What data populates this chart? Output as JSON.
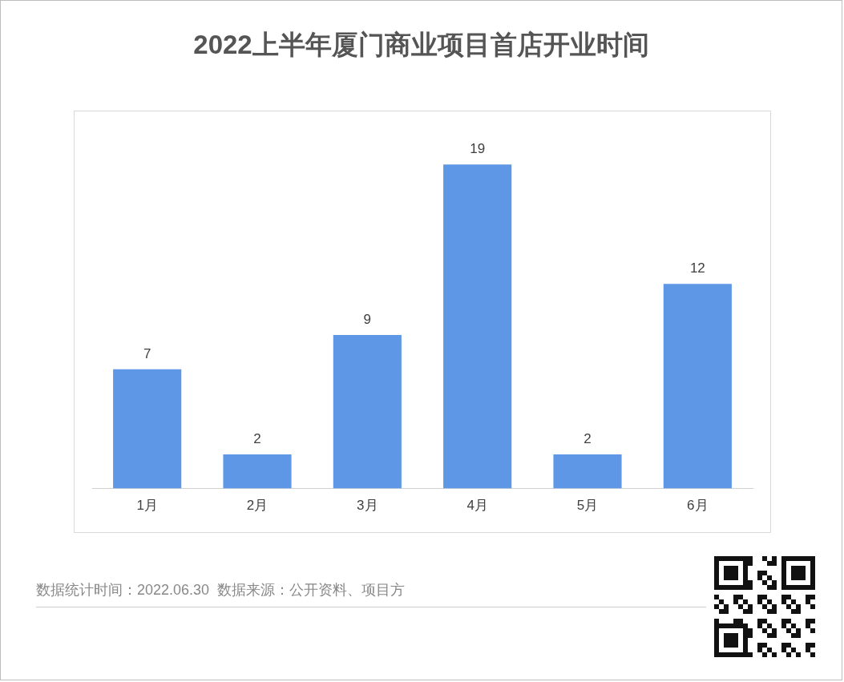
{
  "chart_data": {
    "type": "bar",
    "title": "2022上半年厦门商业项目首店开业时间",
    "categories": [
      "1月",
      "2月",
      "3月",
      "4月",
      "5月",
      "6月"
    ],
    "values": [
      7,
      2,
      9,
      19,
      2,
      12
    ],
    "color": "#5e97e6",
    "data_labels": true,
    "legend": false,
    "annotations": [
      "数据统计时间：2022.06.30  数据来源：公开资料、项目方"
    ]
  }
}
